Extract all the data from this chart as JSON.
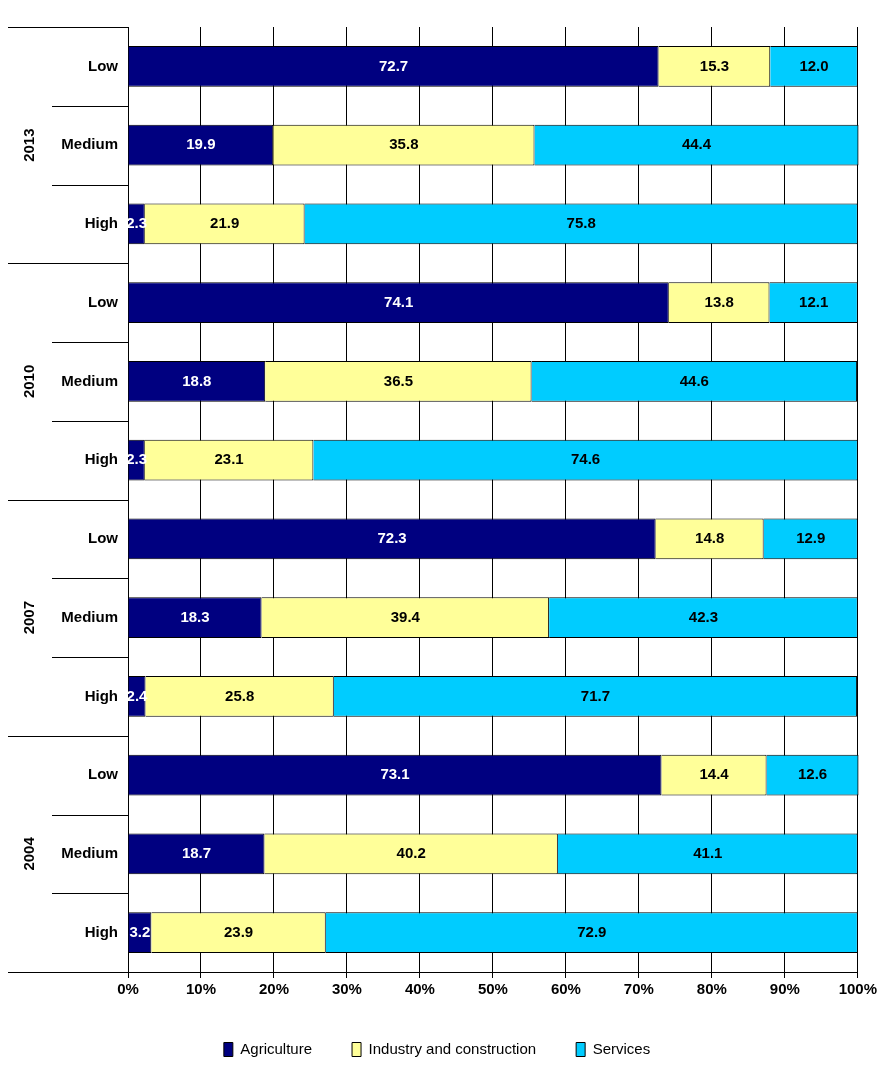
{
  "chart_data": {
    "type": "bar",
    "orientation": "horizontal",
    "stacked": true,
    "categories": [
      "Low",
      "Medium",
      "High",
      "Low",
      "Medium",
      "High",
      "Low",
      "Medium",
      "High",
      "Low",
      "Medium",
      "High"
    ],
    "annotations": [
      "2013",
      "2010",
      "2007",
      "2004"
    ],
    "series": [
      {
        "name": "Agriculture",
        "color": "#000080",
        "values": [
          72.7,
          19.9,
          2.3,
          74.1,
          18.8,
          2.3,
          72.3,
          18.3,
          2.4,
          73.1,
          18.7,
          3.2
        ],
        "value_labels": [
          "72.7",
          "19.9",
          "2.3",
          "74.1",
          "18.8",
          "2.3",
          "72.3",
          "18.3",
          "2.4",
          "73.1",
          "18.7",
          "3.2"
        ]
      },
      {
        "name": "Industry and construction",
        "color": "#ffff99",
        "values": [
          15.3,
          35.8,
          21.9,
          13.8,
          36.5,
          23.1,
          14.8,
          39.4,
          25.8,
          14.4,
          40.2,
          23.9
        ],
        "value_labels": [
          "15.3",
          "35.8",
          "21.9",
          "13.8",
          "36.5",
          "23.1",
          "14.8",
          "39.4",
          "25.8",
          "14.4",
          "40.2",
          "23.9"
        ]
      },
      {
        "name": "Services",
        "color": "#00ccff",
        "values": [
          12.0,
          44.4,
          75.8,
          12.1,
          44.6,
          74.6,
          12.9,
          42.3,
          71.7,
          12.6,
          41.1,
          72.9
        ],
        "value_labels": [
          "12.0",
          "44.4",
          "75.8",
          "12.1",
          "44.6",
          "74.6",
          "12.9",
          "42.3",
          "71.7",
          "12.6",
          "41.1",
          "72.9"
        ]
      }
    ],
    "xlim": [
      0,
      100
    ],
    "xticks": [
      {
        "value": 0,
        "label": "0%"
      },
      {
        "value": 10,
        "label": "10%"
      },
      {
        "value": 20,
        "label": "20%"
      },
      {
        "value": 30,
        "label": "30%"
      },
      {
        "value": 40,
        "label": "40%"
      },
      {
        "value": 50,
        "label": "50%"
      },
      {
        "value": 60,
        "label": "60%"
      },
      {
        "value": 70,
        "label": "70%"
      },
      {
        "value": 80,
        "label": "80%"
      },
      {
        "value": 90,
        "label": "90%"
      },
      {
        "value": 100,
        "label": "100%"
      }
    ],
    "grid": "x",
    "legend": "bottom"
  }
}
